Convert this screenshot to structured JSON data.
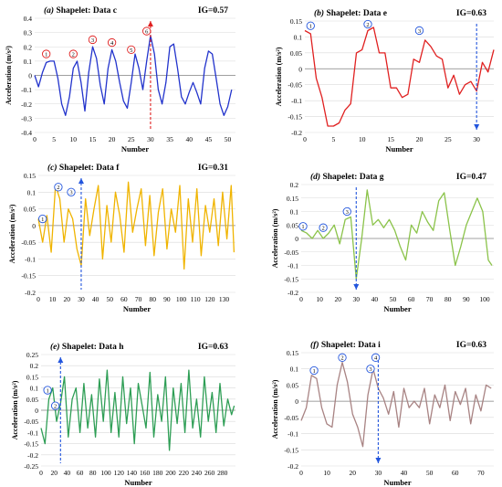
{
  "chart_data": [
    {
      "panel": "(a)",
      "title": "Shapelet: Data c",
      "ig": "IG=0.57",
      "type": "line",
      "color": "#2233cc",
      "xlabel": "Number",
      "ylabel": "Acceleration (m/s²)",
      "xlim": [
        0,
        52
      ],
      "ylim": [
        -0.4,
        0.4
      ],
      "xticks": [
        0,
        5,
        10,
        15,
        20,
        25,
        30,
        35,
        40,
        45,
        50
      ],
      "yticks": [
        -0.4,
        -0.3,
        -0.2,
        -0.1,
        0,
        0.1,
        0.2,
        0.3,
        0.4
      ],
      "marker_color": "#e02020",
      "x": [
        0,
        1,
        2,
        3,
        4,
        5,
        6,
        7,
        8,
        9,
        10,
        11,
        12,
        13,
        14,
        15,
        16,
        17,
        18,
        19,
        20,
        21,
        22,
        23,
        24,
        25,
        26,
        27,
        28,
        29,
        30,
        31,
        32,
        33,
        34,
        35,
        36,
        37,
        38,
        39,
        40,
        41,
        42,
        43,
        44,
        45,
        46,
        47,
        48,
        49,
        50,
        51
      ],
      "y": [
        0,
        -0.08,
        0.02,
        0.09,
        0.1,
        0.1,
        -0.02,
        -0.2,
        -0.28,
        -0.15,
        0.05,
        0.1,
        -0.05,
        -0.25,
        0.02,
        0.2,
        0.12,
        -0.07,
        -0.2,
        0.05,
        0.18,
        0.1,
        -0.05,
        -0.18,
        -0.23,
        -0.05,
        0.15,
        0.05,
        -0.1,
        0.1,
        0.28,
        0.15,
        -0.1,
        -0.2,
        -0.05,
        0.2,
        0.22,
        0.05,
        -0.15,
        -0.2,
        -0.12,
        -0.05,
        -0.12,
        -0.2,
        0.05,
        0.17,
        0.15,
        -0.02,
        -0.2,
        -0.28,
        -0.22,
        -0.1
      ],
      "annotations": [
        {
          "label": "1",
          "x": 3,
          "y": 0.15
        },
        {
          "label": "2",
          "x": 10,
          "y": 0.15
        },
        {
          "label": "3",
          "x": 15,
          "y": 0.25
        },
        {
          "label": "4",
          "x": 20,
          "y": 0.23
        },
        {
          "label": "5",
          "x": 25,
          "y": 0.18
        },
        {
          "label": "6",
          "x": 29,
          "y": 0.31
        }
      ],
      "arrow_x": 30,
      "arrow_dir": "up"
    },
    {
      "panel": "(b)",
      "title": "Shapelet: Data e",
      "ig": "IG=0.63",
      "type": "line",
      "color": "#e02020",
      "xlabel": "Number",
      "ylabel": "Acceleration (m/s²)",
      "xlim": [
        0,
        33
      ],
      "ylim": [
        -0.2,
        0.15
      ],
      "xticks": [
        0,
        5,
        10,
        15,
        20,
        25,
        30
      ],
      "yticks": [
        -0.2,
        -0.15,
        -0.1,
        -0.05,
        0,
        0.05,
        0.1,
        0.15
      ],
      "marker_color": "#2255dd",
      "x": [
        0,
        1,
        2,
        3,
        4,
        5,
        6,
        7,
        8,
        9,
        10,
        11,
        12,
        13,
        14,
        15,
        16,
        17,
        18,
        19,
        20,
        21,
        22,
        23,
        24,
        25,
        26,
        27,
        28,
        29,
        30,
        31,
        32,
        33
      ],
      "y": [
        0.12,
        0.11,
        -0.03,
        -0.09,
        -0.18,
        -0.18,
        -0.17,
        -0.13,
        -0.11,
        0.05,
        0.06,
        0.12,
        0.13,
        0.05,
        0.05,
        -0.06,
        -0.06,
        -0.09,
        -0.08,
        0.03,
        0.02,
        0.09,
        0.07,
        0.04,
        0.03,
        -0.06,
        -0.02,
        -0.08,
        -0.05,
        -0.04,
        -0.07,
        0.02,
        -0.01,
        0.06
      ],
      "annotations": [
        {
          "label": "1",
          "x": 1,
          "y": 0.135
        },
        {
          "label": "2",
          "x": 11,
          "y": 0.14
        },
        {
          "label": "3",
          "x": 20,
          "y": 0.12
        }
      ],
      "arrow_x": 30,
      "arrow_dir": "down"
    },
    {
      "panel": "(c)",
      "title": "Shapelet: Data f",
      "ig": "IG=0.31",
      "type": "line",
      "color": "#f0b400",
      "xlabel": "Number",
      "ylabel": "Acceleration (m/s²)",
      "xlim": [
        0,
        138
      ],
      "ylim": [
        -0.2,
        0.15
      ],
      "xticks": [
        0,
        10,
        20,
        30,
        40,
        50,
        60,
        70,
        80,
        90,
        100,
        110,
        120,
        130
      ],
      "yticks": [
        -0.2,
        -0.15,
        -0.1,
        -0.05,
        0,
        0.05,
        0.1,
        0.15
      ],
      "marker_color": "#2255dd",
      "x": [
        0,
        3,
        6,
        9,
        12,
        15,
        18,
        21,
        24,
        27,
        30,
        33,
        36,
        39,
        42,
        45,
        48,
        51,
        54,
        57,
        60,
        63,
        66,
        69,
        72,
        75,
        78,
        81,
        84,
        87,
        90,
        93,
        96,
        99,
        102,
        105,
        108,
        111,
        114,
        117,
        120,
        123,
        126,
        129,
        132,
        135,
        137
      ],
      "y": [
        0.02,
        -0.05,
        0.03,
        -0.08,
        0.12,
        0.08,
        -0.05,
        0.05,
        0.02,
        -0.07,
        -0.12,
        0.08,
        -0.03,
        0.05,
        0.12,
        -0.1,
        0.06,
        -0.05,
        0.1,
        0.03,
        -0.08,
        0.13,
        -0.02,
        0.05,
        0.11,
        -0.06,
        0.09,
        -0.09,
        0.04,
        0.11,
        -0.07,
        0.05,
        -0.02,
        0.12,
        -0.13,
        0.08,
        -0.05,
        0.11,
        -0.09,
        0.06,
        -0.02,
        0.08,
        -0.06,
        0.1,
        -0.04,
        0.12,
        -0.08
      ],
      "annotations": [
        {
          "label": "1",
          "x": 3,
          "y": 0.02
        },
        {
          "label": "2",
          "x": 14,
          "y": 0.115
        },
        {
          "label": "3",
          "x": 23,
          "y": 0.1
        }
      ],
      "arrow_x": 30,
      "arrow_dir": "up"
    },
    {
      "panel": "(d)",
      "title": "Shapelet: Data g",
      "ig": "IG=0.47",
      "type": "line",
      "color": "#8bc34a",
      "xlabel": "Number",
      "ylabel": "Acceleration (m/s²)",
      "xlim": [
        0,
        105
      ],
      "ylim": [
        -0.2,
        0.2
      ],
      "xticks": [
        0,
        10,
        20,
        30,
        40,
        50,
        60,
        70,
        80,
        90,
        100
      ],
      "yticks": [
        -0.2,
        -0.15,
        -0.1,
        -0.05,
        0,
        0.05,
        0.1,
        0.15,
        0.2
      ],
      "marker_color": "#2255dd",
      "x": [
        0,
        3,
        6,
        9,
        12,
        15,
        18,
        21,
        24,
        27,
        30,
        33,
        36,
        39,
        42,
        45,
        48,
        51,
        54,
        57,
        60,
        63,
        66,
        69,
        72,
        75,
        78,
        81,
        84,
        87,
        90,
        93,
        96,
        99,
        102,
        104
      ],
      "y": [
        0.03,
        0.02,
        0.0,
        0.03,
        0.0,
        0.02,
        0.05,
        -0.02,
        0.07,
        0.08,
        -0.15,
        0.0,
        0.18,
        0.05,
        0.07,
        0.04,
        0.07,
        0.03,
        -0.03,
        -0.08,
        0.05,
        0.02,
        0.1,
        0.06,
        0.03,
        0.14,
        0.17,
        0.03,
        -0.1,
        -0.03,
        0.05,
        0.1,
        0.15,
        0.1,
        -0.08,
        -0.1
      ],
      "annotations": [
        {
          "label": "1",
          "x": 1,
          "y": 0.045
        },
        {
          "label": "2",
          "x": 12,
          "y": 0.04
        },
        {
          "label": "3",
          "x": 25,
          "y": 0.1
        }
      ],
      "arrow_x": 30,
      "arrow_dir": "down"
    },
    {
      "panel": "(e)",
      "title": "Shapelet: Data h",
      "ig": "IG=0.63",
      "type": "line",
      "color": "#2e9e55",
      "xlabel": "Number",
      "ylabel": "Acceleration (m/s²)",
      "xlim": [
        0,
        300
      ],
      "ylim": [
        -0.25,
        0.25
      ],
      "xticks": [
        0,
        20,
        40,
        60,
        80,
        100,
        120,
        140,
        160,
        180,
        200,
        220,
        240,
        260,
        280
      ],
      "yticks": [
        -0.25,
        -0.2,
        -0.15,
        -0.1,
        -0.05,
        0,
        0.05,
        0.1,
        0.15,
        0.2,
        0.25
      ],
      "marker_color": "#2255dd",
      "x": [
        0,
        6,
        12,
        18,
        24,
        30,
        36,
        42,
        48,
        54,
        60,
        66,
        72,
        78,
        84,
        90,
        96,
        102,
        108,
        114,
        120,
        126,
        132,
        138,
        144,
        150,
        156,
        162,
        168,
        174,
        180,
        186,
        192,
        198,
        204,
        210,
        216,
        222,
        228,
        234,
        240,
        246,
        252,
        258,
        264,
        270,
        276,
        282,
        288,
        294,
        298
      ],
      "y": [
        -0.08,
        -0.15,
        0.05,
        0.1,
        -0.05,
        0.03,
        0.15,
        -0.12,
        0.05,
        0.1,
        -0.1,
        0.12,
        -0.08,
        0.07,
        -0.12,
        0.14,
        -0.05,
        0.18,
        -0.1,
        0.08,
        -0.12,
        0.15,
        -0.06,
        0.1,
        -0.15,
        0.12,
        0.02,
        -0.08,
        0.17,
        -0.12,
        0.07,
        -0.05,
        0.15,
        -0.18,
        0.1,
        -0.06,
        0.12,
        -0.1,
        0.18,
        -0.08,
        0.05,
        -0.12,
        0.15,
        -0.05,
        0.08,
        -0.1,
        0.12,
        -0.07,
        0.05,
        -0.02,
        0.02
      ],
      "annotations": [
        {
          "label": "1",
          "x": 10,
          "y": 0.09
        },
        {
          "label": "2",
          "x": 22,
          "y": 0.02
        }
      ],
      "arrow_x": 30,
      "arrow_dir": "up"
    },
    {
      "panel": "(f)",
      "title": "Shapelet: Data i",
      "ig": "IG=0.63",
      "type": "line",
      "color": "#a88383",
      "xlabel": "Number",
      "ylabel": "Acceleration (m/s²)",
      "xlim": [
        0,
        75
      ],
      "ylim": [
        -0.2,
        0.15
      ],
      "xticks": [
        0,
        10,
        20,
        30,
        40,
        50,
        60,
        70
      ],
      "yticks": [
        -0.2,
        -0.15,
        -0.1,
        -0.05,
        0,
        0.05,
        0.1,
        0.15
      ],
      "marker_color": "#2255dd",
      "x": [
        0,
        2,
        4,
        6,
        8,
        10,
        12,
        14,
        16,
        18,
        20,
        22,
        24,
        26,
        28,
        30,
        32,
        34,
        36,
        38,
        40,
        42,
        44,
        46,
        48,
        50,
        52,
        54,
        56,
        58,
        60,
        62,
        64,
        66,
        68,
        70,
        72,
        74
      ],
      "y": [
        -0.06,
        -0.02,
        0.08,
        0.07,
        -0.02,
        -0.07,
        -0.08,
        0.05,
        0.12,
        0.06,
        -0.04,
        -0.08,
        -0.14,
        0.02,
        0.1,
        0.04,
        0.01,
        -0.04,
        0.03,
        -0.08,
        0.04,
        -0.02,
        0.0,
        -0.02,
        0.04,
        -0.07,
        0.02,
        -0.02,
        0.05,
        -0.06,
        0.03,
        -0.01,
        0.04,
        -0.07,
        0.02,
        -0.03,
        0.05,
        0.04
      ],
      "annotations": [
        {
          "label": "1",
          "x": 5,
          "y": 0.095
        },
        {
          "label": "2",
          "x": 16,
          "y": 0.135
        },
        {
          "label": "3",
          "x": 27,
          "y": 0.1
        },
        {
          "label": "4",
          "x": 29,
          "y": 0.135
        }
      ],
      "arrow_x": 30,
      "arrow_dir": "down"
    }
  ]
}
